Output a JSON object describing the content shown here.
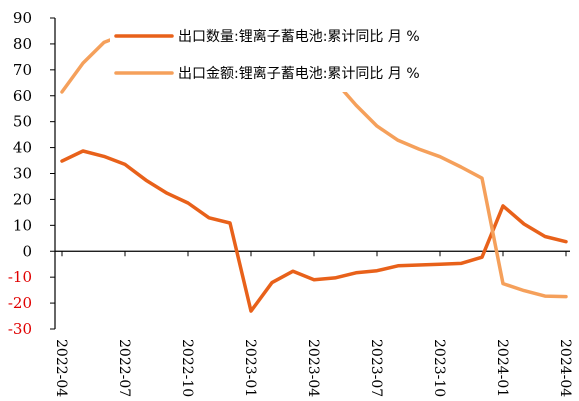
{
  "chart_data": {
    "type": "line",
    "title": "",
    "xlabel": "",
    "ylabel": "",
    "ylim": [
      -30,
      90
    ],
    "yticks": [
      -30,
      -20,
      -10,
      0,
      10,
      20,
      30,
      40,
      50,
      60,
      70,
      80,
      90
    ],
    "xlim": [
      "2022-04",
      "2024-04"
    ],
    "xticks": [
      "2022-04",
      "2022-07",
      "2022-10",
      "2023-01",
      "2023-04",
      "2023-07",
      "2023-10",
      "2024-01",
      "2024-04"
    ],
    "negative_tick_color": "#e00000",
    "grid": false,
    "legend_position": "top-right",
    "series": [
      {
        "name": "出口数量:锂离子蓄电池:累计同比 月 %",
        "color": "#e8611a",
        "points": [
          [
            "2022-04",
            34.8
          ],
          [
            "2022-05",
            38.7
          ],
          [
            "2022-06",
            36.6
          ],
          [
            "2022-07",
            33.5
          ],
          [
            "2022-08",
            27.4
          ],
          [
            "2022-09",
            22.4
          ],
          [
            "2022-10",
            18.6
          ],
          [
            "2022-11",
            12.9
          ],
          [
            "2022-12",
            10.9
          ],
          [
            "2023-01",
            -23.1
          ],
          [
            "2023-02",
            -12.1
          ],
          [
            "2023-03",
            -7.7
          ],
          [
            "2023-04",
            -11.0
          ],
          [
            "2023-05",
            -10.3
          ],
          [
            "2023-06",
            -8.3
          ],
          [
            "2023-07",
            -7.5
          ],
          [
            "2023-08",
            -5.6
          ],
          [
            "2023-09",
            -5.3
          ],
          [
            "2023-10",
            -5.0
          ],
          [
            "2023-11",
            -4.7
          ],
          [
            "2023-12",
            -2.3
          ],
          [
            "2024-01",
            17.5
          ],
          [
            "2024-02",
            10.5
          ],
          [
            "2024-03",
            5.7
          ],
          [
            "2024-04",
            3.7
          ]
        ]
      },
      {
        "name": "出口金额:锂离子蓄电池:累计同比 月 %",
        "color": "#f5a05b",
        "points": [
          [
            "2022-04",
            61.5
          ],
          [
            "2022-05",
            72.6
          ],
          [
            "2022-06",
            80.6
          ],
          [
            "2022-07",
            83.7
          ],
          [
            "2022-08",
            83.3
          ],
          [
            "2022-09",
            83.2
          ],
          [
            "2022-10",
            82.6
          ],
          [
            "2022-11",
            80.3
          ],
          [
            "2022-12",
            78.6
          ],
          [
            "2023-01",
            70.3
          ],
          [
            "2023-02",
            83.5
          ],
          [
            "2023-03",
            80.2
          ],
          [
            "2023-04",
            73.4
          ],
          [
            "2023-05",
            65.6
          ],
          [
            "2023-06",
            56.4
          ],
          [
            "2023-07",
            48.3
          ],
          [
            "2023-08",
            42.8
          ],
          [
            "2023-09",
            39.4
          ],
          [
            "2023-10",
            36.5
          ],
          [
            "2023-11",
            32.5
          ],
          [
            "2023-12",
            28.2
          ],
          [
            "2024-01",
            -12.5
          ],
          [
            "2024-02",
            -15.2
          ],
          [
            "2024-03",
            -17.3
          ],
          [
            "2024-04",
            -17.5
          ]
        ]
      }
    ]
  }
}
